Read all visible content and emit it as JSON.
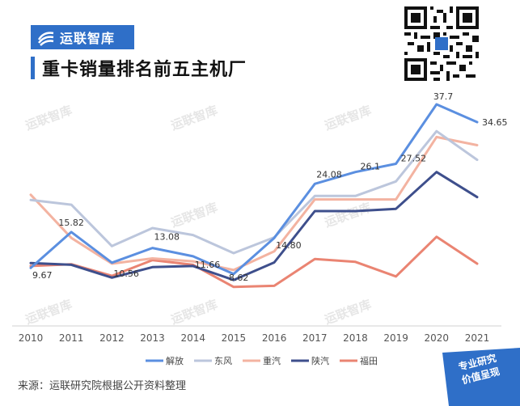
{
  "brand": {
    "name": "运联智库",
    "color": "#2f6fc8"
  },
  "header": {
    "title": "重卡销量排名前五主机厂"
  },
  "footer": {
    "source": "来源：运联研究院根据公开资料整理"
  },
  "badge": {
    "line1": "专业研究",
    "line2": "价值呈现"
  },
  "watermark": "运联智库",
  "chart_data": {
    "type": "line",
    "title": "重卡销量排名前五主机厂",
    "xlabel": "",
    "ylabel": "",
    "x": [
      "2010",
      "2011",
      "2012",
      "2013",
      "2014",
      "2015",
      "2016",
      "2017",
      "2018",
      "2019",
      "2020",
      "2021"
    ],
    "ylim": [
      0,
      42
    ],
    "grid": false,
    "legend": "bottom",
    "series": [
      {
        "name": "解放",
        "color": "#5b8fe0",
        "values": [
          9.67,
          15.82,
          10.56,
          13.08,
          11.66,
          8.62,
          14.8,
          24.08,
          26.1,
          27.52,
          37.7,
          34.65
        ]
      },
      {
        "name": "东风",
        "color": "#bcc6dc",
        "values": [
          21.3,
          20.5,
          13.4,
          16.5,
          15.3,
          12.2,
          14.9,
          22.0,
          22.0,
          24.5,
          33.1,
          28.2
        ]
      },
      {
        "name": "重汽",
        "color": "#f3b3a1",
        "values": [
          22.2,
          14.8,
          10.4,
          11.3,
          10.8,
          9.3,
          12.5,
          21.4,
          21.4,
          21.4,
          32.1,
          30.7
        ]
      },
      {
        "name": "陕汽",
        "color": "#3e4f8c",
        "values": [
          10.5,
          10.2,
          8.0,
          9.8,
          10.0,
          7.6,
          10.6,
          19.4,
          19.4,
          19.8,
          26.1,
          21.8
        ]
      },
      {
        "name": "福田",
        "color": "#ea8472",
        "values": [
          10.0,
          10.3,
          8.3,
          11.0,
          10.2,
          6.4,
          6.6,
          11.2,
          10.7,
          8.2,
          15.0,
          10.4
        ]
      }
    ],
    "annotations": [
      {
        "series": "解放",
        "x": "2010",
        "label": "9.67"
      },
      {
        "series": "解放",
        "x": "2011",
        "label": "15.82"
      },
      {
        "series": "解放",
        "x": "2012",
        "label": "10.56"
      },
      {
        "series": "解放",
        "x": "2013",
        "label": "13.08"
      },
      {
        "series": "解放",
        "x": "2014",
        "label": "11.66"
      },
      {
        "series": "解放",
        "x": "2015",
        "label": "8.62"
      },
      {
        "series": "解放",
        "x": "2016",
        "label": "14.80"
      },
      {
        "series": "解放",
        "x": "2017",
        "label": "24.08"
      },
      {
        "series": "解放",
        "x": "2018",
        "label": "26.1"
      },
      {
        "series": "解放",
        "x": "2019",
        "label": "27.52"
      },
      {
        "series": "解放",
        "x": "2020",
        "label": "37.7"
      },
      {
        "series": "解放",
        "x": "2021",
        "label": "34.65"
      }
    ]
  }
}
